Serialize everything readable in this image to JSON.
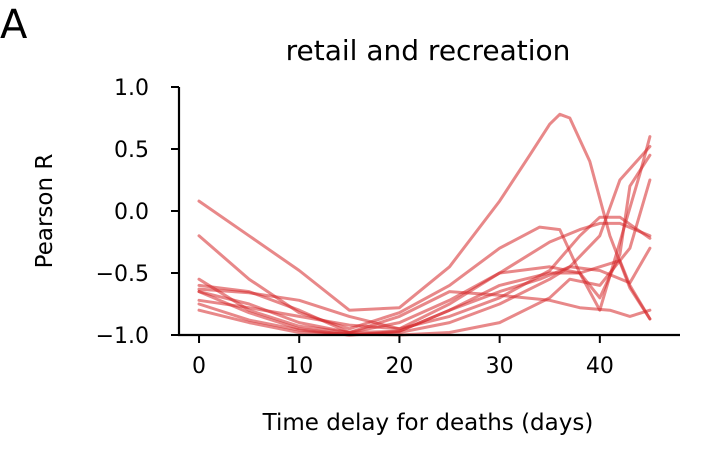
{
  "panel_label": "A",
  "chart_data": {
    "type": "line",
    "title": "retail and recreation",
    "xlabel": "Time delay for deaths (days)",
    "ylabel": "Pearson R",
    "xlim": [
      -2,
      48
    ],
    "ylim": [
      -1.0,
      1.0
    ],
    "xticks": [
      0,
      10,
      20,
      30,
      40
    ],
    "xtick_labels": [
      "0",
      "10",
      "20",
      "30",
      "40"
    ],
    "yticks": [
      -1.0,
      -0.5,
      0.0,
      0.5,
      1.0
    ],
    "ytick_labels": [
      "−1.0",
      "−0.5",
      "0.0",
      "0.5",
      "1.0"
    ],
    "grid": false,
    "color": "#d62728",
    "series": [
      {
        "x": [
          0,
          5,
          10,
          15,
          20,
          25,
          30,
          33,
          35,
          36,
          37,
          39,
          41,
          43,
          45
        ],
        "y": [
          0.08,
          -0.2,
          -0.48,
          -0.8,
          -0.78,
          -0.45,
          0.08,
          0.45,
          0.7,
          0.78,
          0.75,
          0.4,
          -0.2,
          -0.62,
          -0.87
        ]
      },
      {
        "x": [
          0,
          5,
          10,
          15,
          20,
          25,
          30,
          34,
          36,
          38,
          40,
          42,
          44,
          45
        ],
        "y": [
          -0.2,
          -0.55,
          -0.82,
          -0.95,
          -0.82,
          -0.6,
          -0.3,
          -0.13,
          -0.15,
          -0.5,
          -0.8,
          -0.25,
          0.3,
          0.6
        ]
      },
      {
        "x": [
          0,
          5,
          10,
          15,
          20,
          25,
          30,
          35,
          38,
          40,
          42,
          45
        ],
        "y": [
          -0.55,
          -0.8,
          -0.93,
          -0.98,
          -0.9,
          -0.72,
          -0.5,
          -0.25,
          -0.15,
          -0.1,
          -0.1,
          -0.2
        ]
      },
      {
        "x": [
          0,
          5,
          10,
          15,
          20,
          25,
          30,
          35,
          38,
          40,
          42,
          43,
          45
        ],
        "y": [
          -0.6,
          -0.65,
          -0.8,
          -0.98,
          -0.97,
          -0.8,
          -0.6,
          -0.5,
          -0.5,
          -0.7,
          -0.35,
          0.2,
          0.45
        ]
      },
      {
        "x": [
          0,
          5,
          10,
          15,
          20,
          25,
          30,
          35,
          38,
          40,
          42,
          43,
          45
        ],
        "y": [
          -0.63,
          -0.66,
          -0.72,
          -0.85,
          -0.95,
          -0.75,
          -0.5,
          -0.45,
          -0.5,
          -0.45,
          -0.4,
          -0.6,
          -0.87
        ]
      },
      {
        "x": [
          0,
          5,
          10,
          15,
          20,
          25,
          30,
          34,
          37,
          40,
          42,
          45
        ],
        "y": [
          -0.65,
          -0.82,
          -0.95,
          -1.0,
          -0.97,
          -0.8,
          -0.65,
          -0.55,
          -0.45,
          -0.2,
          0.25,
          0.52
        ]
      },
      {
        "x": [
          0,
          5,
          10,
          15,
          20,
          25,
          30,
          35,
          38,
          40,
          42,
          45
        ],
        "y": [
          -0.72,
          -0.78,
          -0.85,
          -0.92,
          -0.95,
          -0.85,
          -0.7,
          -0.48,
          -0.2,
          -0.05,
          -0.05,
          -0.22
        ]
      },
      {
        "x": [
          0,
          5,
          10,
          15,
          20,
          25,
          30,
          35,
          37,
          40,
          43,
          45
        ],
        "y": [
          -0.75,
          -0.88,
          -0.96,
          -1.0,
          -0.98,
          -0.9,
          -0.75,
          -0.55,
          -0.45,
          -0.48,
          -0.58,
          -0.3
        ]
      },
      {
        "x": [
          0,
          5,
          10,
          15,
          20,
          25,
          30,
          35,
          37,
          40,
          43,
          45
        ],
        "y": [
          -0.8,
          -0.9,
          -0.98,
          -0.99,
          -1.0,
          -0.98,
          -0.9,
          -0.7,
          -0.55,
          -0.6,
          -0.3,
          0.25
        ]
      },
      {
        "x": [
          0,
          5,
          10,
          15,
          20,
          25,
          30,
          35,
          38,
          41,
          43,
          45
        ],
        "y": [
          -0.65,
          -0.75,
          -0.9,
          -0.98,
          -0.85,
          -0.65,
          -0.68,
          -0.72,
          -0.78,
          -0.8,
          -0.85,
          -0.8
        ]
      }
    ]
  }
}
